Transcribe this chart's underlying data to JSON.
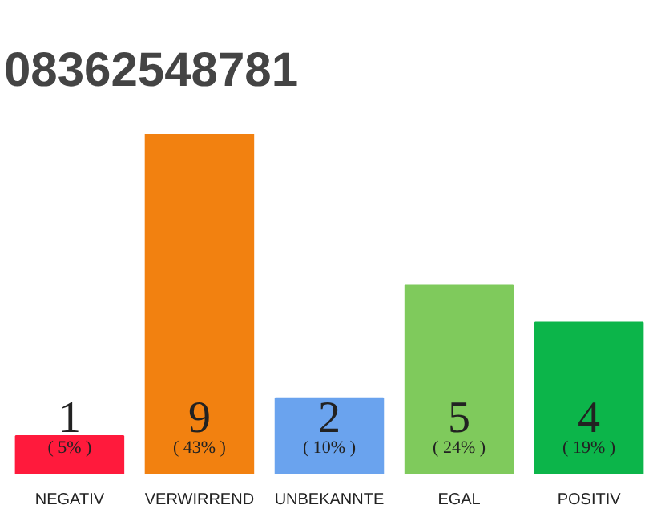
{
  "chart_data": {
    "type": "bar",
    "title": "08362548781",
    "categories": [
      "NEGATIV",
      "VERWIRREND",
      "UNBEKANNTE",
      "EGAL",
      "POSITIV"
    ],
    "values": [
      1,
      9,
      2,
      5,
      4
    ],
    "colors": [
      "#ff1a3c",
      "#f28110",
      "#6aa3ee",
      "#7fca5c",
      "#0cb54a"
    ],
    "data_labels": true,
    "annotations": [
      "( 5% )",
      "( 43% )",
      "( 10% )",
      "( 24% )",
      "( 19% )"
    ]
  }
}
